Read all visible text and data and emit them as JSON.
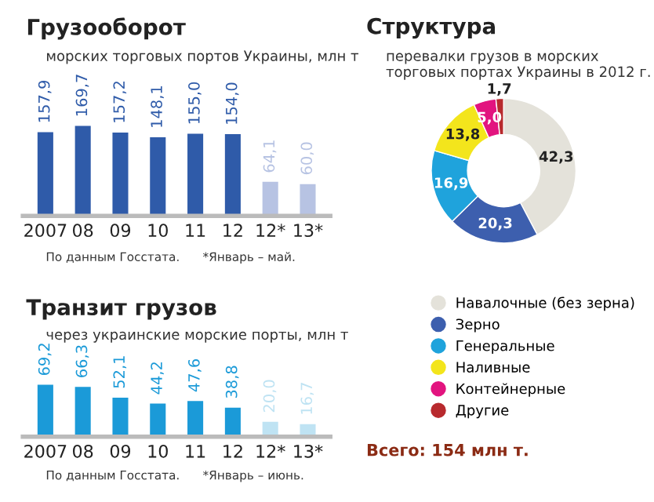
{
  "chart_data": [
    {
      "type": "bar",
      "title": "Грузооборот",
      "subtitle": "морских торговых портов Украины, млн т",
      "categories": [
        "2007",
        "08",
        "09",
        "10",
        "11",
        "12",
        "12*",
        "13*"
      ],
      "values": [
        157.9,
        169.7,
        157.2,
        148.1,
        155.0,
        154.0,
        64.1,
        60.0
      ],
      "value_labels": [
        "157,9",
        "169,7",
        "157,2",
        "148,1",
        "155,0",
        "154,0",
        "64,1",
        "60,0"
      ],
      "colors": [
        "#2f5ba9",
        "#2f5ba9",
        "#2f5ba9",
        "#2f5ba9",
        "#2f5ba9",
        "#2f5ba9",
        "#b7c3e3",
        "#b7c3e3"
      ],
      "annotations": [
        "По данным Госстата.",
        "*Январь – май."
      ]
    },
    {
      "type": "bar",
      "title": "Транзит грузов",
      "subtitle": "через украинские морские порты, млн т",
      "categories": [
        "2007",
        "08",
        "09",
        "10",
        "11",
        "12",
        "12*",
        "13*"
      ],
      "values": [
        69.2,
        66.3,
        52.1,
        44.2,
        47.6,
        38.8,
        20.0,
        16.7
      ],
      "value_labels": [
        "69,2",
        "66,3",
        "52,1",
        "44,2",
        "47,6",
        "38,8",
        "20,0",
        "16,7"
      ],
      "colors": [
        "#1b9ad8",
        "#1b9ad8",
        "#1b9ad8",
        "#1b9ad8",
        "#1b9ad8",
        "#1b9ad8",
        "#bfe3f3",
        "#bfe3f3"
      ],
      "annotations": [
        "По данным Госстата.",
        "*Январь – июнь."
      ]
    },
    {
      "type": "donut",
      "title": "Структура",
      "subtitle": "перевалки грузов в морских торговых портах Украины в 2012 г.",
      "categories": [
        "Навалочные (без зерна)",
        "Зерно",
        "Генеральные",
        "Наливные",
        "Контейнерные",
        "Другие"
      ],
      "values": [
        42.3,
        20.3,
        16.9,
        13.8,
        5.0,
        1.7
      ],
      "value_labels": [
        "42,3",
        "20,3",
        "16,9",
        "13,8",
        "5,0",
        "1,7"
      ],
      "colors": [
        "#e4e2da",
        "#3d5fae",
        "#1fa3dc",
        "#f3e51c",
        "#e2147f",
        "#b82a2e"
      ],
      "legend": "bottom",
      "annotations": [
        "Всего: 154 млн т."
      ]
    }
  ]
}
